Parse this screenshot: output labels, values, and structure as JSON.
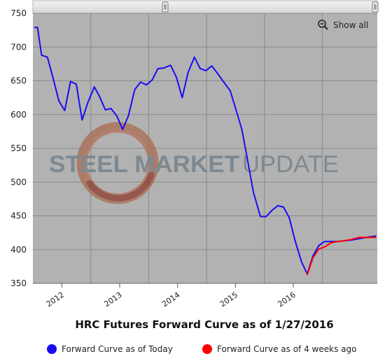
{
  "chart_data": {
    "type": "line",
    "title": "HRC Futures Forward Curve as of 1/27/2016",
    "xlabel": "",
    "ylabel": "",
    "x_ticks": [
      "2012",
      "2013",
      "2014",
      "2015",
      "2016"
    ],
    "y_ticks": [
      350,
      400,
      450,
      500,
      550,
      600,
      650,
      700,
      750
    ],
    "ylim": [
      350,
      750
    ],
    "xlim": [
      2011.0,
      2016.95
    ],
    "grid": true,
    "legend_position": "bottom",
    "show_all_label": "Show all",
    "watermark": {
      "text_left": "STEEL MARKET",
      "text_right": "UPDATE"
    },
    "series": [
      {
        "name": "Forward Curve as of Today",
        "color": "#1a0cf2",
        "points": [
          [
            2011.03,
            729
          ],
          [
            2011.08,
            729
          ],
          [
            2011.15,
            688
          ],
          [
            2011.25,
            685
          ],
          [
            2011.33,
            660
          ],
          [
            2011.45,
            620
          ],
          [
            2011.55,
            606
          ],
          [
            2011.65,
            649
          ],
          [
            2011.75,
            645
          ],
          [
            2011.85,
            592
          ],
          [
            2011.95,
            618
          ],
          [
            2012.06,
            641
          ],
          [
            2012.15,
            627
          ],
          [
            2012.25,
            607
          ],
          [
            2012.35,
            609
          ],
          [
            2012.45,
            598
          ],
          [
            2012.55,
            578
          ],
          [
            2012.65,
            598
          ],
          [
            2012.76,
            637
          ],
          [
            2012.86,
            648
          ],
          [
            2012.96,
            644
          ],
          [
            2013.06,
            651
          ],
          [
            2013.16,
            668
          ],
          [
            2013.26,
            669
          ],
          [
            2013.38,
            673
          ],
          [
            2013.48,
            655
          ],
          [
            2013.58,
            625
          ],
          [
            2013.68,
            662
          ],
          [
            2013.79,
            685
          ],
          [
            2013.89,
            668
          ],
          [
            2013.99,
            665
          ],
          [
            2014.09,
            672
          ],
          [
            2014.19,
            661
          ],
          [
            2014.29,
            649
          ],
          [
            2014.41,
            635
          ],
          [
            2014.51,
            607
          ],
          [
            2014.61,
            578
          ],
          [
            2014.71,
            532
          ],
          [
            2014.81,
            485
          ],
          [
            2014.93,
            449
          ],
          [
            2015.03,
            449
          ],
          [
            2015.13,
            458
          ],
          [
            2015.23,
            465
          ],
          [
            2015.33,
            463
          ],
          [
            2015.43,
            447
          ],
          [
            2015.53,
            413
          ],
          [
            2015.64,
            382
          ],
          [
            2015.74,
            364
          ],
          [
            2015.84,
            391
          ],
          [
            2015.94,
            406
          ],
          [
            2016.04,
            412
          ],
          [
            2016.15,
            412
          ],
          [
            2016.26,
            412
          ],
          [
            2016.37,
            413
          ],
          [
            2016.5,
            414
          ],
          [
            2016.63,
            416
          ],
          [
            2016.76,
            418
          ],
          [
            2016.92,
            420
          ]
        ]
      },
      {
        "name": "Forward Curve as of 4 weeks ago",
        "color": "#ff0000",
        "points": [
          [
            2015.74,
            363
          ],
          [
            2015.84,
            388
          ],
          [
            2015.94,
            401
          ],
          [
            2016.04,
            404
          ],
          [
            2016.15,
            410
          ],
          [
            2016.26,
            412
          ],
          [
            2016.37,
            413
          ],
          [
            2016.5,
            415
          ],
          [
            2016.63,
            418
          ],
          [
            2016.76,
            418
          ],
          [
            2016.92,
            418
          ]
        ]
      }
    ]
  }
}
